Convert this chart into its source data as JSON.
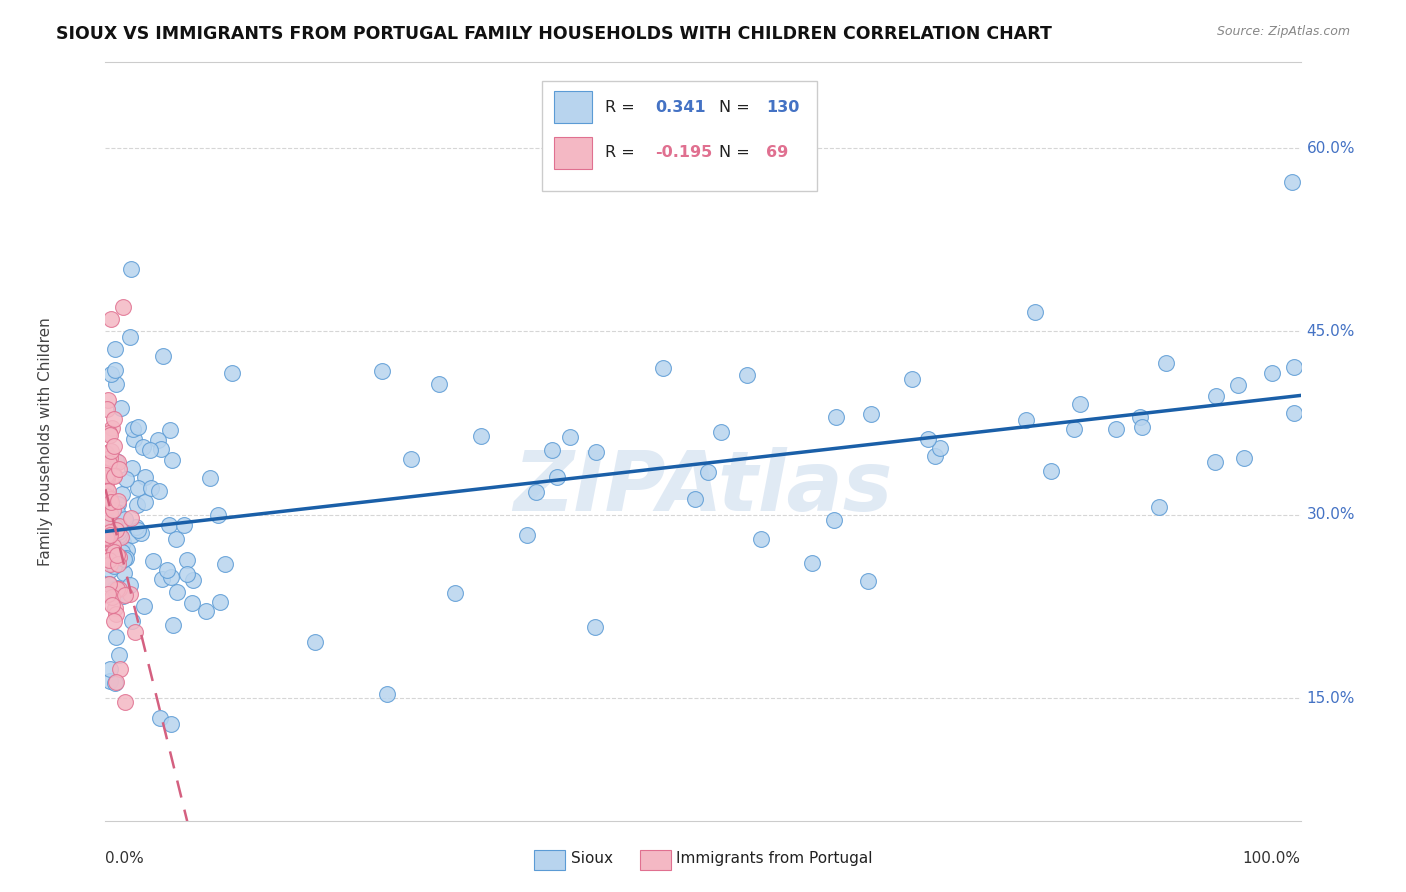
{
  "title": "SIOUX VS IMMIGRANTS FROM PORTUGAL FAMILY HOUSEHOLDS WITH CHILDREN CORRELATION CHART",
  "source": "Source: ZipAtlas.com",
  "ylabel": "Family Households with Children",
  "xlim": [
    0,
    1.0
  ],
  "ylim": [
    0.05,
    0.67
  ],
  "ytick_positions": [
    0.15,
    0.3,
    0.45,
    0.6
  ],
  "ytick_labels": [
    "15.0%",
    "30.0%",
    "45.0%",
    "60.0%"
  ],
  "R_sioux": 0.341,
  "N_sioux": 130,
  "R_portugal": -0.195,
  "N_portugal": 69,
  "blue_fill": "#b8d4ee",
  "blue_edge": "#5b9bd5",
  "pink_fill": "#f4b8c4",
  "pink_edge": "#e07090",
  "trend_blue": "#1a5fa8",
  "trend_pink": "#d46080",
  "watermark": "ZIPAtlas",
  "watermark_color": "#ccdcee",
  "background_color": "#ffffff",
  "grid_color": "#cccccc",
  "title_fontsize": 12.5,
  "legend_R_color": "#333333",
  "legend_val_color": "#4472c4",
  "legend_pink_val_color": "#e07090"
}
